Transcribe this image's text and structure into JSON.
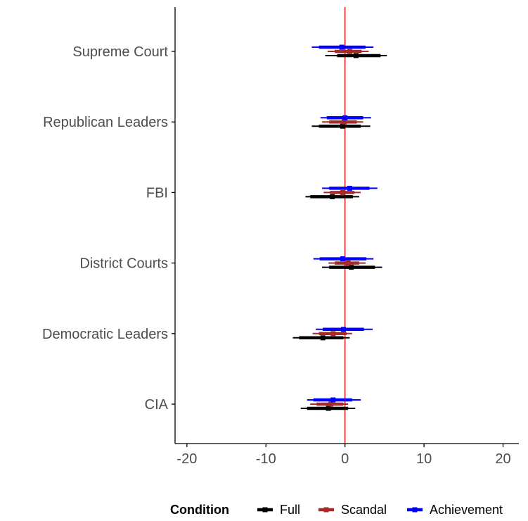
{
  "chart_data": {
    "type": "forest",
    "x_ticks": [
      -20,
      -10,
      0,
      10,
      20
    ],
    "xlim": [
      -21.5,
      22
    ],
    "categories": [
      "Supreme Court",
      "Republican Leaders",
      "FBI",
      "District Courts",
      "Democratic Leaders",
      "CIA"
    ],
    "reference_line": {
      "x": 0,
      "color": "#e41a1c"
    },
    "series": [
      {
        "name": "Full",
        "color": "#000000",
        "points": [
          {
            "category": "Supreme Court",
            "estimate": 1.4,
            "ci90": [
              -1.0,
              4.5
            ],
            "ci95": [
              -2.5,
              5.3
            ]
          },
          {
            "category": "Republican Leaders",
            "estimate": -0.3,
            "ci90": [
              -3.3,
              2.0
            ],
            "ci95": [
              -4.2,
              3.2
            ]
          },
          {
            "category": "FBI",
            "estimate": -1.6,
            "ci90": [
              -4.4,
              1.0
            ],
            "ci95": [
              -5.0,
              1.8
            ]
          },
          {
            "category": "District Courts",
            "estimate": 0.8,
            "ci90": [
              -2.0,
              3.8
            ],
            "ci95": [
              -2.9,
              4.7
            ]
          },
          {
            "category": "Democratic Leaders",
            "estimate": -2.8,
            "ci90": [
              -5.8,
              -0.2
            ],
            "ci95": [
              -6.6,
              0.6
            ]
          },
          {
            "category": "CIA",
            "estimate": -2.1,
            "ci90": [
              -4.8,
              0.4
            ],
            "ci95": [
              -5.6,
              1.3
            ]
          }
        ]
      },
      {
        "name": "Scandal",
        "color": "#a52a2a",
        "points": [
          {
            "category": "Supreme Court",
            "estimate": 0.6,
            "ci90": [
              -1.3,
              2.1
            ],
            "ci95": [
              -2.2,
              3.0
            ]
          },
          {
            "category": "Republican Leaders",
            "estimate": -0.1,
            "ci90": [
              -2.0,
              1.5
            ],
            "ci95": [
              -2.9,
              2.3
            ]
          },
          {
            "category": "FBI",
            "estimate": -0.3,
            "ci90": [
              -1.9,
              1.2
            ],
            "ci95": [
              -2.7,
              2.0
            ]
          },
          {
            "category": "District Courts",
            "estimate": 0.4,
            "ci90": [
              -1.3,
              1.8
            ],
            "ci95": [
              -2.1,
              2.6
            ]
          },
          {
            "category": "Democratic Leaders",
            "estimate": -1.5,
            "ci90": [
              -3.3,
              0.2
            ],
            "ci95": [
              -4.1,
              0.9
            ]
          },
          {
            "category": "CIA",
            "estimate": -1.8,
            "ci90": [
              -3.6,
              -0.2
            ],
            "ci95": [
              -4.4,
              0.4
            ]
          }
        ]
      },
      {
        "name": "Achievement",
        "color": "#0000ff",
        "points": [
          {
            "category": "Supreme Court",
            "estimate": -0.4,
            "ci90": [
              -3.3,
              2.6
            ],
            "ci95": [
              -4.2,
              3.6
            ]
          },
          {
            "category": "Republican Leaders",
            "estimate": 0.0,
            "ci90": [
              -2.3,
              2.3
            ],
            "ci95": [
              -3.1,
              3.3
            ]
          },
          {
            "category": "FBI",
            "estimate": 0.6,
            "ci90": [
              -2.0,
              3.1
            ],
            "ci95": [
              -2.9,
              4.1
            ]
          },
          {
            "category": "District Courts",
            "estimate": -0.3,
            "ci90": [
              -3.2,
              2.7
            ],
            "ci95": [
              -4.0,
              3.6
            ]
          },
          {
            "category": "Democratic Leaders",
            "estimate": -0.2,
            "ci90": [
              -2.8,
              2.4
            ],
            "ci95": [
              -3.7,
              3.5
            ]
          },
          {
            "category": "CIA",
            "estimate": -1.5,
            "ci90": [
              -4.0,
              0.9
            ],
            "ci95": [
              -4.8,
              2.0
            ]
          }
        ]
      }
    ],
    "legend": {
      "title": "Condition",
      "position": "bottom-right",
      "labels": [
        "Full",
        "Scandal",
        "Achievement"
      ]
    }
  }
}
